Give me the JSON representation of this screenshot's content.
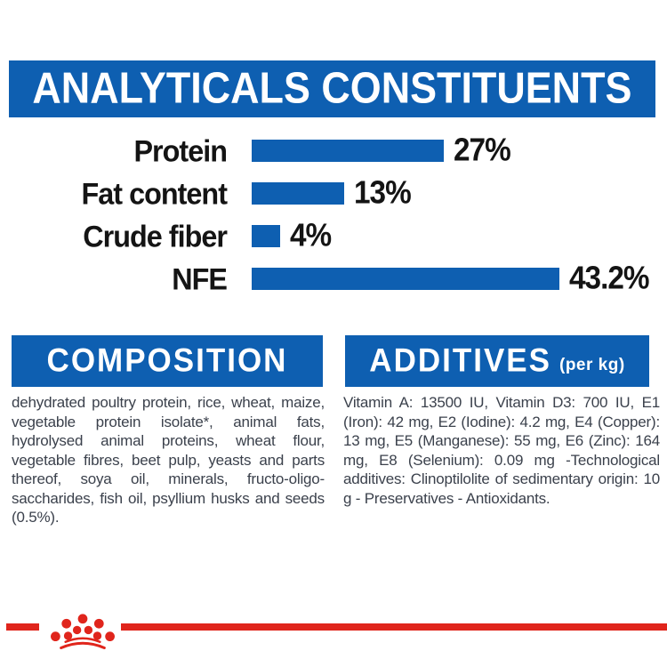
{
  "colors": {
    "banner_blue": "#0e5fb1",
    "bar_blue": "#0e5fb1",
    "brand_red": "#e0251c",
    "body_text": "#3b414c",
    "chart_label_black": "#141414"
  },
  "banner": {
    "title": "ANALYTICALS CONSTITUENTS"
  },
  "chart_data": {
    "type": "bar",
    "orientation": "horizontal",
    "title": "ANALYTICALS CONSTITUENTS",
    "categories": [
      "Protein",
      "Fat content",
      "Crude fiber",
      "NFE"
    ],
    "values": [
      27,
      13,
      4,
      43.2
    ],
    "value_labels": [
      "27%",
      "13%",
      "4%",
      "43.2%"
    ],
    "unit": "%",
    "xlim": [
      0,
      45
    ],
    "grid": false,
    "legend": false,
    "bar_color": "#0e5fb1"
  },
  "composition": {
    "heading": "COMPOSITION",
    "body": "dehydrated poultry protein, rice, wheat, maize, vegetable protein isolate*, animal fats, hydrolysed animal proteins, wheat flour, vegetable fibres, beet pulp, yeasts and parts thereof, soya oil, minerals, fructo-oligo-saccharides, fish oil, psyllium husks and seeds (0.5%)."
  },
  "additives": {
    "heading": "ADDITIVES",
    "heading_suffix": "(per kg)",
    "body": "Vitamin A: 13500 IU, Vitamin D3: 700 IU, E1 (Iron): 42 mg, E2 (Iodine): 4.2 mg, E4 (Copper): 13 mg, E5 (Manganese): 55 mg, E6 (Zinc): 164 mg, E8 (Selenium): 0.09 mg -Technological additives: Clinoptilolite of sedimentary origin: 10 g - Preservatives - Antioxidants."
  },
  "footer": {
    "brand_mark": "royal-canin-crown-logo"
  }
}
